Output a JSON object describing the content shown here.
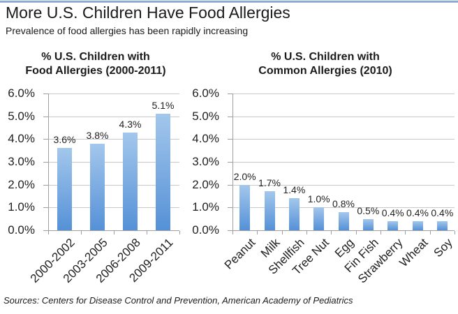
{
  "page": {
    "title": "More U.S. Children Have Food Allergies",
    "subtitle": "Prevalence of food allergies has been rapidly increasing",
    "source": "Sources: Centers for Disease Control and Prevention, American Academy of Pediatrics",
    "accent_color": "#95b3d7",
    "bar_color_top": "#a3c7ec",
    "bar_color_bottom": "#5591d7",
    "gridline_color": "#c9c9c9",
    "axis_color": "#9e9e9e"
  },
  "chart_data": [
    {
      "type": "bar",
      "title": "% U.S. Children with Food Allergies (2000-2011)",
      "title_lines": [
        "% U.S. Children with",
        "Food Allergies (2000-2011)"
      ],
      "categories": [
        "2000-2002",
        "2003-2005",
        "2006-2008",
        "2009-2011"
      ],
      "values": [
        3.6,
        3.8,
        4.3,
        5.1
      ],
      "data_labels": [
        "3.6%",
        "3.8%",
        "4.3%",
        "5.1%"
      ],
      "xlabel": "",
      "ylabel": "",
      "ylim": [
        0,
        6
      ],
      "ytick_step": 1,
      "ytick_labels": [
        "0.0%",
        "1.0%",
        "2.0%",
        "3.0%",
        "4.0%",
        "5.0%",
        "6.0%"
      ],
      "grid": true,
      "legend": "none"
    },
    {
      "type": "bar",
      "title": "% U.S. Children with Common Allergies (2010)",
      "title_lines": [
        "% U.S. Children with",
        "Common Allergies (2010)"
      ],
      "categories": [
        "Peanut",
        "Milk",
        "Shellfish",
        "Tree Nut",
        "Egg",
        "Fin Fish",
        "Strawberry",
        "Wheat",
        "Soy"
      ],
      "values": [
        2.0,
        1.7,
        1.4,
        1.0,
        0.8,
        0.5,
        0.4,
        0.4,
        0.4
      ],
      "data_labels": [
        "2.0%",
        "1.7%",
        "1.4%",
        "1.0%",
        "0.8%",
        "0.5%",
        "0.4%",
        "0.4%",
        "0.4%"
      ],
      "xlabel": "",
      "ylabel": "",
      "ylim": [
        0,
        6
      ],
      "ytick_step": 1,
      "ytick_labels": [
        "0.0%",
        "1.0%",
        "2.0%",
        "3.0%",
        "4.0%",
        "5.0%",
        "6.0%"
      ],
      "grid": true,
      "legend": "none"
    }
  ]
}
